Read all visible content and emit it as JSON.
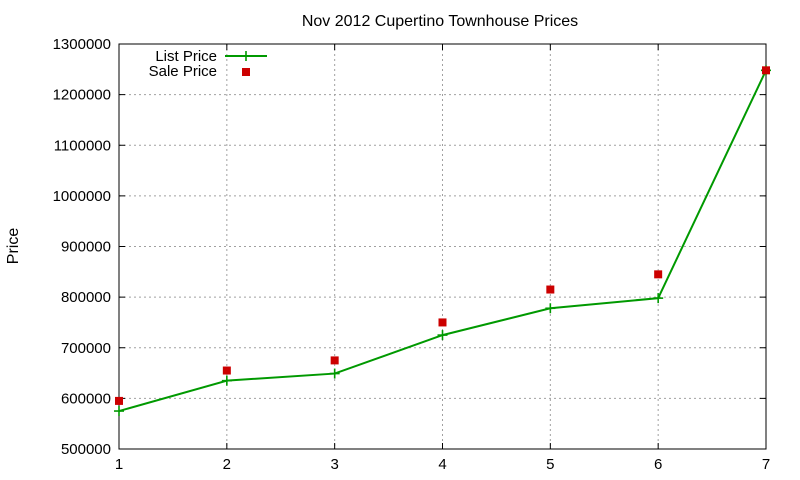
{
  "chart_data": {
    "type": "line",
    "title": "Nov 2012 Cupertino Townhouse Prices",
    "xlabel": "",
    "ylabel": "Price",
    "x": [
      1,
      2,
      3,
      4,
      5,
      6,
      7
    ],
    "xlim": [
      1,
      7
    ],
    "ylim": [
      500000,
      1300000
    ],
    "x_ticks": [
      "1",
      "2",
      "3",
      "4",
      "5",
      "6",
      "7"
    ],
    "y_ticks": [
      "500000",
      "600000",
      "700000",
      "800000",
      "900000",
      "1000000",
      "1100000",
      "1200000",
      "1300000"
    ],
    "grid": true,
    "legend_position": "top-left",
    "series": [
      {
        "name": "List Price",
        "style": "linespoints",
        "marker": "plus",
        "color": "#009900",
        "values": [
          575000,
          635000,
          649000,
          725000,
          778000,
          798000,
          1248000
        ]
      },
      {
        "name": "Sale Price",
        "style": "points",
        "marker": "square",
        "color": "#cc0000",
        "values": [
          595000,
          655000,
          675000,
          750000,
          815000,
          845000,
          1248000
        ]
      }
    ]
  }
}
